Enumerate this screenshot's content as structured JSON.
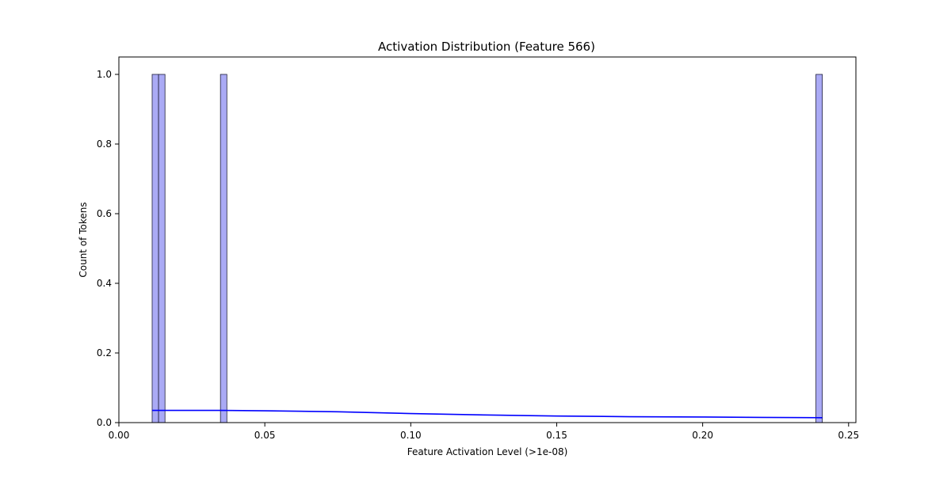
{
  "chart_data": {
    "type": "bar",
    "title": "Activation Distribution (Feature 566)",
    "xlabel": "Feature Activation Level (>1e-08)",
    "ylabel": "Count of Tokens",
    "xlim": [
      0.0,
      0.2525
    ],
    "ylim": [
      0.0,
      1.05
    ],
    "x_ticks": [
      0.0,
      0.05,
      0.1,
      0.15,
      0.2,
      0.25
    ],
    "x_tick_labels": [
      "0.00",
      "0.05",
      "0.10",
      "0.15",
      "0.20",
      "0.25"
    ],
    "y_ticks": [
      0.0,
      0.2,
      0.4,
      0.6,
      0.8,
      1.0
    ],
    "y_tick_labels": [
      "0.0",
      "0.2",
      "0.4",
      "0.6",
      "0.8",
      "1.0"
    ],
    "grid": false,
    "legend": "none",
    "bars": [
      {
        "x0": 0.0114,
        "x1": 0.0136,
        "value": 1
      },
      {
        "x0": 0.0136,
        "x1": 0.0158,
        "value": 1
      },
      {
        "x0": 0.0348,
        "x1": 0.037,
        "value": 1
      },
      {
        "x0": 0.2388,
        "x1": 0.241,
        "value": 1
      }
    ],
    "kde": {
      "x": [
        0.0114,
        0.02,
        0.035,
        0.05,
        0.075,
        0.1,
        0.125,
        0.15,
        0.175,
        0.2,
        0.22,
        0.241
      ],
      "y": [
        0.035,
        0.035,
        0.035,
        0.034,
        0.031,
        0.026,
        0.022,
        0.019,
        0.017,
        0.016,
        0.015,
        0.014
      ]
    },
    "colors": {
      "bar_fill": "#aaaaf5",
      "bar_edge": "#1f1f3a",
      "kde_line": "#0000ff",
      "axis": "#000000"
    }
  }
}
